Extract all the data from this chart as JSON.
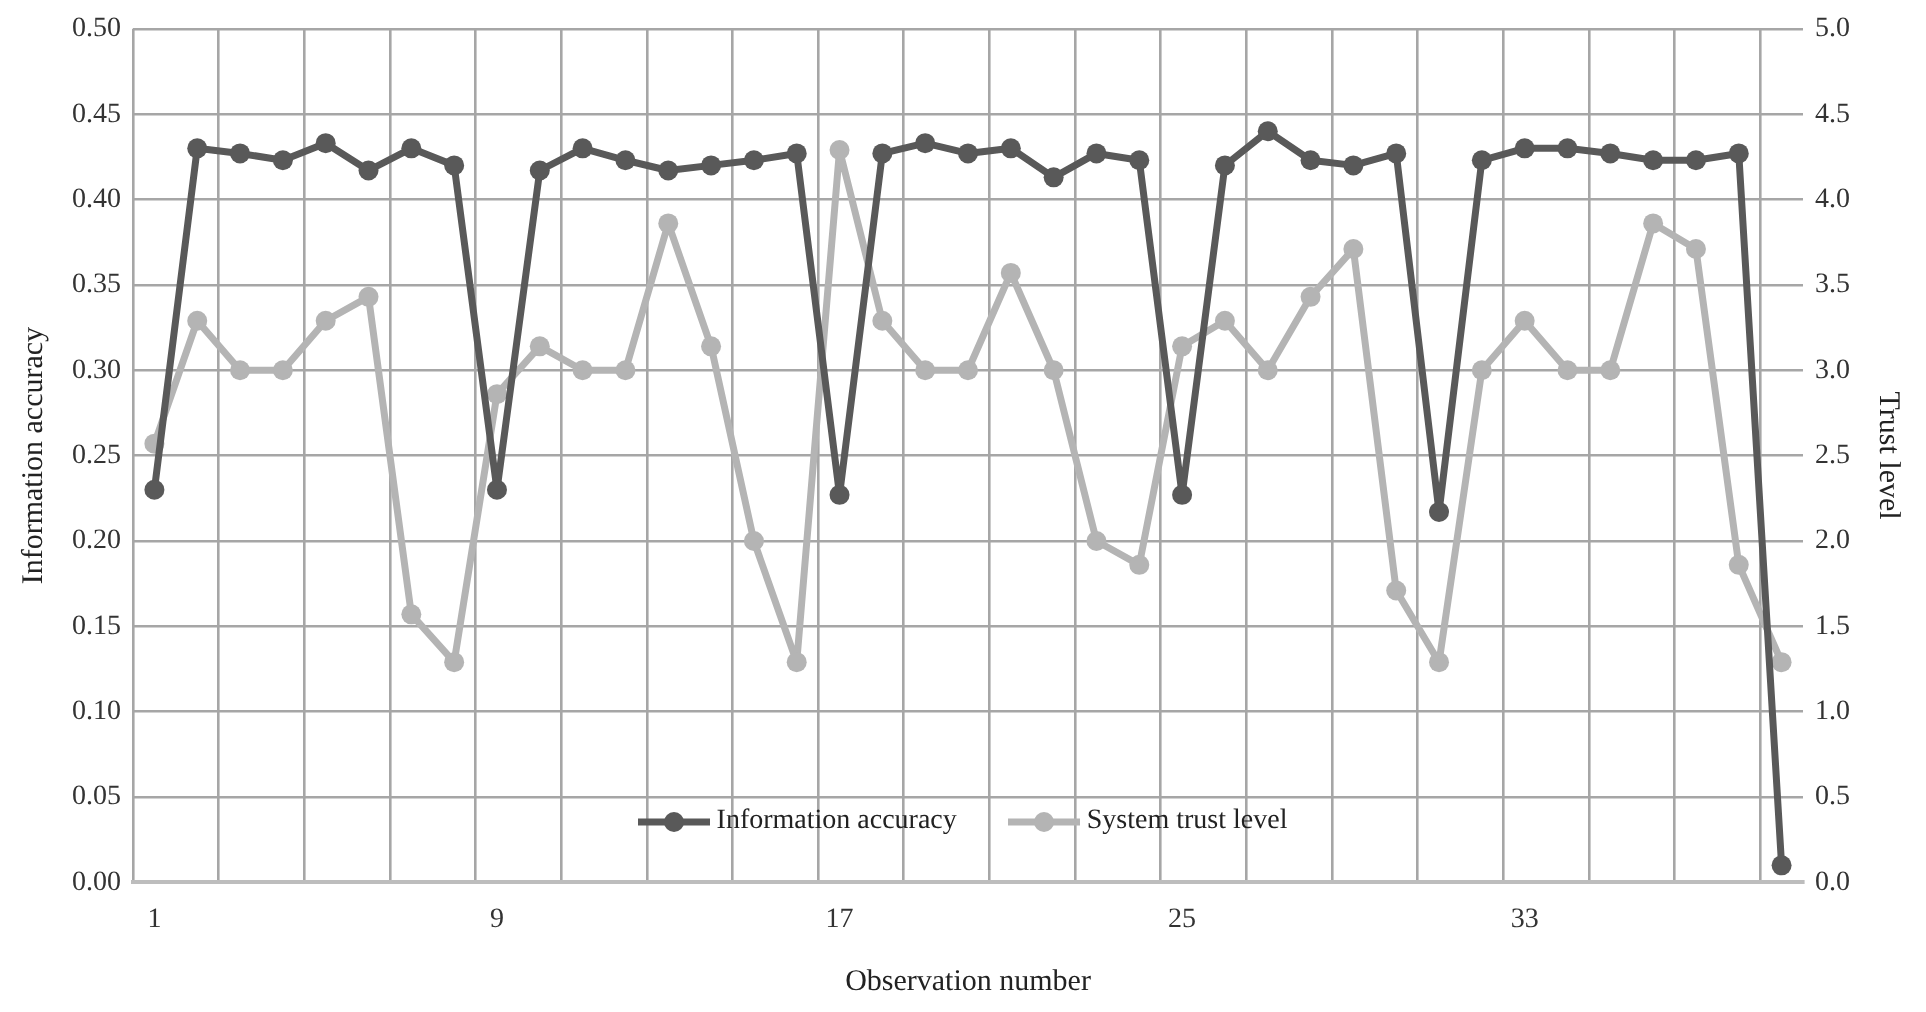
{
  "chart_data": {
    "type": "line",
    "xlabel": "Observation number",
    "ylabel": "Information accuracy",
    "y2label": "Trust level",
    "categories": [
      "1",
      null,
      null,
      null,
      null,
      null,
      null,
      null,
      "9",
      null,
      null,
      null,
      null,
      null,
      null,
      null,
      "17",
      null,
      null,
      null,
      null,
      null,
      null,
      null,
      "25",
      null,
      null,
      null,
      null,
      null,
      null,
      null,
      "33",
      null,
      null,
      null,
      null,
      null,
      null
    ],
    "series": [
      {
        "name": "Information accuracy",
        "color": "#595959",
        "values": [
          0.23,
          0.43,
          0.427,
          0.423,
          0.433,
          0.417,
          0.43,
          0.42,
          0.23,
          0.417,
          0.43,
          0.423,
          0.417,
          0.42,
          0.423,
          0.427,
          0.227,
          0.427,
          0.433,
          0.427,
          0.43,
          0.413,
          0.427,
          0.423,
          0.227,
          0.42,
          0.44,
          0.423,
          0.42,
          0.427,
          0.217,
          0.423,
          0.43,
          0.43,
          0.427,
          0.423,
          0.423,
          0.427,
          0.01
        ]
      },
      {
        "name": "System trust level",
        "color": "#b4b4b4",
        "axis": "y2",
        "values": [
          2.57,
          3.29,
          3.0,
          3.0,
          3.29,
          3.43,
          1.57,
          1.29,
          2.86,
          3.14,
          3.0,
          3.0,
          3.86,
          3.14,
          2.0,
          1.29,
          4.29,
          3.29,
          3.0,
          3.0,
          3.57,
          3.0,
          2.0,
          1.86,
          3.14,
          3.29,
          3.0,
          3.43,
          3.71,
          1.71,
          1.29,
          3.0,
          3.29,
          3.0,
          3.0,
          3.86,
          3.71,
          1.86,
          1.29
        ]
      }
    ],
    "ylim": [
      0,
      0.5
    ],
    "yticks": [
      {
        "value": 0,
        "label": "0.00"
      },
      0.05,
      {
        "value": 0.1,
        "label": "0.10"
      },
      0.15,
      {
        "value": 0.2,
        "label": "0.20"
      },
      0.25,
      {
        "value": 0.3,
        "label": "0.30"
      },
      0.35,
      {
        "value": 0.4,
        "label": "0.40"
      },
      0.45,
      {
        "value": 0.5,
        "label": "0.50"
      }
    ],
    "y2lim": [
      0,
      5
    ],
    "y2ticks": [
      {
        "value": 0,
        "label": "0.0"
      },
      0.5,
      {
        "value": 1,
        "label": "1.0"
      },
      1.5,
      {
        "value": 2,
        "label": "2.0"
      },
      2.5,
      {
        "value": 3,
        "label": "3.0"
      },
      3.5,
      {
        "value": 4,
        "label": "4.0"
      },
      4.5,
      {
        "value": 5,
        "label": "5.0"
      }
    ],
    "grid": true,
    "legend": "bottom",
    "marker": "circle",
    "line_style": "solid"
  }
}
